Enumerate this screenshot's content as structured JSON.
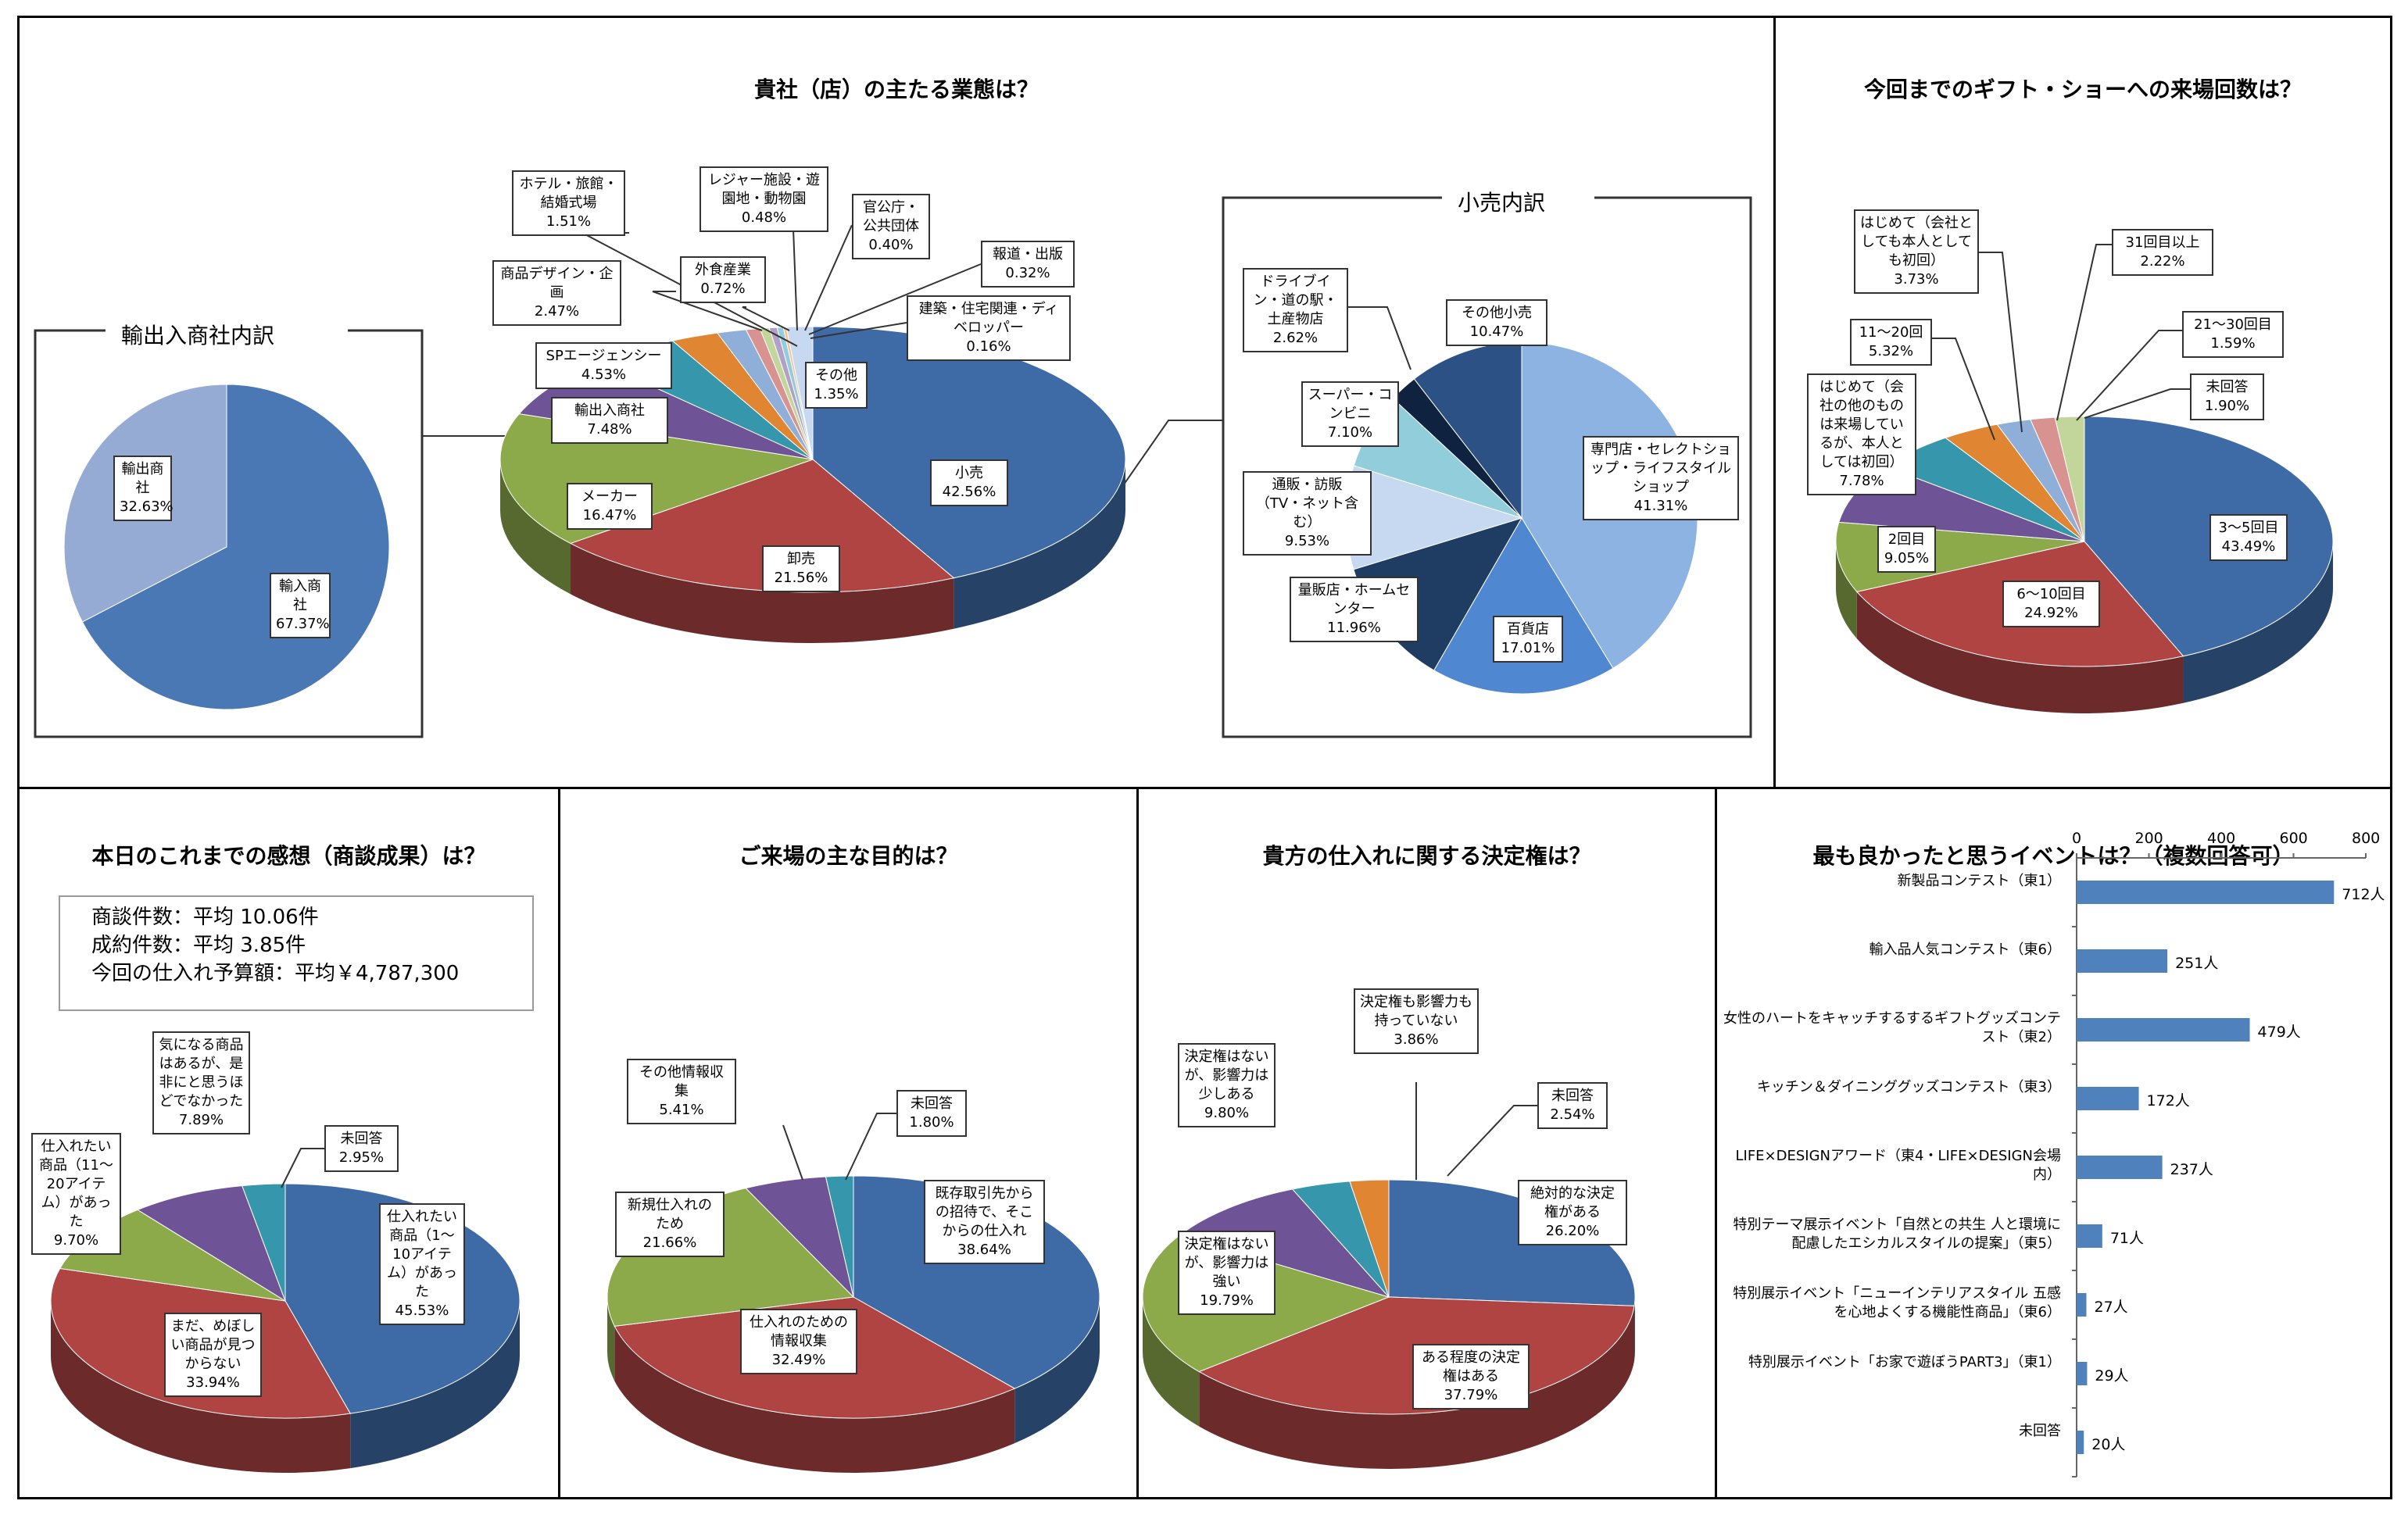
{
  "chart_data": [
    {
      "type": "pie",
      "title": "貴社（店）の主たる業態は？",
      "slices": [
        {
          "label": "小売",
          "value": 42.56,
          "value_text": "42.56%",
          "color": "#3e6aa5"
        },
        {
          "label": "卸売",
          "value": 21.56,
          "value_text": "21.56%",
          "color": "#b04443"
        },
        {
          "label": "メーカー",
          "value": 16.47,
          "value_text": "16.47%",
          "color": "#8daa4a"
        },
        {
          "label": "輸出入商社",
          "value": 7.48,
          "value_text": "7.48%",
          "color": "#6e5496"
        },
        {
          "label": "SPエージェンシー",
          "value": 4.53,
          "value_text": "4.53%",
          "color": "#3696ac"
        },
        {
          "label": "商品デザイン・企画",
          "value": 2.47,
          "value_text": "2.47%",
          "color": "#e08532"
        },
        {
          "label": "ホテル・旅館・結婚式場",
          "value": 1.51,
          "value_text": "1.51%",
          "color": "#8faed8"
        },
        {
          "label": "外食産業",
          "value": 0.72,
          "value_text": "0.72%",
          "color": "#d8928f"
        },
        {
          "label": "レジャー施設・遊園地・動物園",
          "value": 0.48,
          "value_text": "0.48%",
          "color": "#c2d69b"
        },
        {
          "label": "官公庁・公共団体",
          "value": 0.4,
          "value_text": "0.40%",
          "color": "#b1a1c7"
        },
        {
          "label": "報道・出版",
          "value": 0.32,
          "value_text": "0.32%",
          "color": "#93cddd"
        },
        {
          "label": "建築・住宅関連・ディベロッパー",
          "value": 0.16,
          "value_text": "0.16%",
          "color": "#fac090"
        },
        {
          "label": "その他",
          "value": 1.35,
          "value_text": "1.35%",
          "color": "#c6d9f1"
        }
      ],
      "subpanels": {
        "left_title": "輸出入商社内訳",
        "right_title": "小売内訳"
      }
    },
    {
      "type": "pie",
      "title": "輸出入商社内訳",
      "slices": [
        {
          "label": "輸入商社",
          "value": 67.37,
          "value_text": "67.37%",
          "color": "#4a78b4"
        },
        {
          "label": "輸出商社",
          "value": 32.63,
          "value_text": "32.63%",
          "color": "#96abd3"
        }
      ]
    },
    {
      "type": "pie",
      "title": "小売内訳",
      "slices": [
        {
          "label": "専門店・セレクトショップ・ライフスタイルショップ",
          "value": 41.31,
          "value_text": "41.31%",
          "color": "#8db3e2"
        },
        {
          "label": "百貨店",
          "value": 17.01,
          "value_text": "17.01%",
          "color": "#4f88d0"
        },
        {
          "label": "量販店・ホームセンター",
          "value": 11.96,
          "value_text": "11.96%",
          "color": "#1f3c63"
        },
        {
          "label": "通販・訪販（TV・ネット含む）",
          "value": 9.53,
          "value_text": "9.53%",
          "color": "#c6d9f1"
        },
        {
          "label": "スーパー・コンビニ",
          "value": 7.1,
          "value_text": "7.10%",
          "color": "#92cddc"
        },
        {
          "label": "ドライブイン・道の駅・土産物店",
          "value": 2.62,
          "value_text": "2.62%",
          "color": "#0f2340"
        },
        {
          "label": "その他小売",
          "value": 10.47,
          "value_text": "10.47%",
          "color": "#2c5184"
        }
      ]
    },
    {
      "type": "pie",
      "title": "今回までのギフト・ショーへの来場回数は？",
      "slices": [
        {
          "label": "3～5回目",
          "value": 43.49,
          "value_text": "43.49%",
          "color": "#3e6aa5"
        },
        {
          "label": "6～10回目",
          "value": 24.92,
          "value_text": "24.92%",
          "color": "#b04443"
        },
        {
          "label": "2回目",
          "value": 9.05,
          "value_text": "9.05%",
          "color": "#8daa4a"
        },
        {
          "label": "はじめて（会社の他のものは来場しているが、本人としては初回）",
          "value": 7.78,
          "value_text": "7.78%",
          "color": "#6e5496"
        },
        {
          "label": "11～20回",
          "value": 5.32,
          "value_text": "5.32%",
          "color": "#3696ac"
        },
        {
          "label": "はじめて（会社としても本人としても初回）",
          "value": 3.73,
          "value_text": "3.73%",
          "color": "#e08532"
        },
        {
          "label": "31回目以上",
          "value": 2.22,
          "value_text": "2.22%",
          "color": "#8faed8"
        },
        {
          "label": "21～30回目",
          "value": 1.59,
          "value_text": "1.59%",
          "color": "#d8928f"
        },
        {
          "label": "未回答",
          "value": 1.9,
          "value_text": "1.90%",
          "color": "#c2d69b"
        }
      ]
    },
    {
      "type": "pie",
      "title": "本日のこれまでの感想（商談成果）は？",
      "info": [
        "商談件数：平均 10.06件",
        "成約件数：平均 3.85件",
        "今回の仕入れ予算額：平均￥4,787,300"
      ],
      "slices": [
        {
          "label": "仕入れたい商品（1～10アイテム）があった",
          "value": 45.53,
          "value_text": "45.53%",
          "color": "#3e6aa5"
        },
        {
          "label": "まだ、めぼしい商品が見つからない",
          "value": 33.94,
          "value_text": "33.94%",
          "color": "#b04443"
        },
        {
          "label": "仕入れたい商品（11～20アイテム）があった",
          "value": 9.7,
          "value_text": "9.70%",
          "color": "#8daa4a"
        },
        {
          "label": "気になる商品はあるが、是非にと思うほどでなかった",
          "value": 7.89,
          "value_text": "7.89%",
          "color": "#6e5496"
        },
        {
          "label": "未回答",
          "value": 2.95,
          "value_text": "2.95%",
          "color": "#3696ac"
        }
      ]
    },
    {
      "type": "pie",
      "title": "ご来場の主な目的は？",
      "slices": [
        {
          "label": "既存取引先からの招待で、そこからの仕入れ",
          "value": 38.64,
          "value_text": "38.64%",
          "color": "#3e6aa5"
        },
        {
          "label": "仕入れのための情報収集",
          "value": 32.49,
          "value_text": "32.49%",
          "color": "#b04443"
        },
        {
          "label": "新規仕入れのため",
          "value": 21.66,
          "value_text": "21.66%",
          "color": "#8daa4a"
        },
        {
          "label": "その他情報収集",
          "value": 5.41,
          "value_text": "5.41%",
          "color": "#6e5496"
        },
        {
          "label": "未回答",
          "value": 1.8,
          "value_text": "1.80%",
          "color": "#3696ac"
        }
      ]
    },
    {
      "type": "pie",
      "title": "貴方の仕入れに関する決定権は？",
      "slices": [
        {
          "label": "絶対的な決定権がある",
          "value": 26.2,
          "value_text": "26.20%",
          "color": "#3e6aa5"
        },
        {
          "label": "ある程度の決定権はある",
          "value": 37.79,
          "value_text": "37.79%",
          "color": "#b04443"
        },
        {
          "label": "決定権はないが、影響力は強い",
          "value": 19.79,
          "value_text": "19.79%",
          "color": "#8daa4a"
        },
        {
          "label": "決定権はないが、影響力は少しある",
          "value": 9.8,
          "value_text": "9.80%",
          "color": "#6e5496"
        },
        {
          "label": "決定権も影響力も持っていない",
          "value": 3.86,
          "value_text": "3.86%",
          "color": "#3696ac"
        },
        {
          "label": "未回答",
          "value": 2.54,
          "value_text": "2.54%",
          "color": "#e08532"
        }
      ]
    },
    {
      "type": "bar",
      "orientation": "horizontal",
      "title": "最も良かったと思うイベントは？（複数回答可）",
      "xlim": [
        0,
        800
      ],
      "xticks": [
        "0",
        "200",
        "400",
        "600",
        "800"
      ],
      "categories": [
        "新製品コンテスト（東1）",
        "輸入品人気コンテスト（東6）",
        "女性のハートをキャッチするするギフトグッズコンテスト（東2）",
        "キッチン＆ダイニンググッズコンテスト（東3）",
        "LIFE×DESIGNアワード（東4・LIFE×DESIGN会場内）",
        "特別テーマ展示イベント「自然との共生 人と環境に配慮したエシカルスタイルの提案」（東5）",
        "特別展示イベント「ニューインテリアスタイル 五感を心地よくする機能性商品」（東6）",
        "特別展示イベント「お家で遊ぼうPART3」（東1）",
        "未回答"
      ],
      "values": [
        712,
        251,
        479,
        172,
        237,
        71,
        27,
        29,
        20
      ],
      "value_labels": [
        "712人",
        "251人",
        "479人",
        "172人",
        "237人",
        "71人",
        "27人",
        "29人",
        "20人"
      ],
      "color": "#4f81bd"
    }
  ]
}
